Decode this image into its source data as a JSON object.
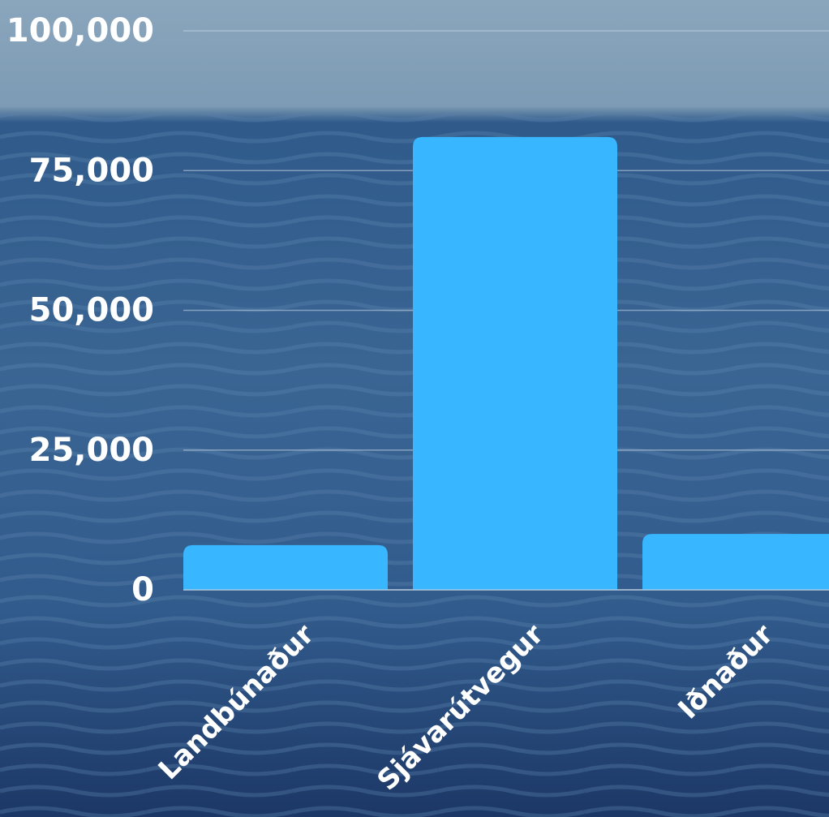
{
  "chart_data": {
    "type": "bar",
    "categories": [
      "Landbúnaður",
      "Sjávarútvegur",
      "Iðnaður"
    ],
    "values": [
      8000,
      81000,
      10000
    ],
    "color": "#38b6ff",
    "ylim": [
      0,
      100000
    ],
    "yticks": [
      0,
      {
        "value": 25000,
        "label": "25,000"
      },
      {
        "value": 50000,
        "label": "50,000"
      },
      {
        "value": 75000,
        "label": "75,000"
      },
      {
        "value": 100000,
        "label": "100,000"
      }
    ],
    "grid": true
  }
}
